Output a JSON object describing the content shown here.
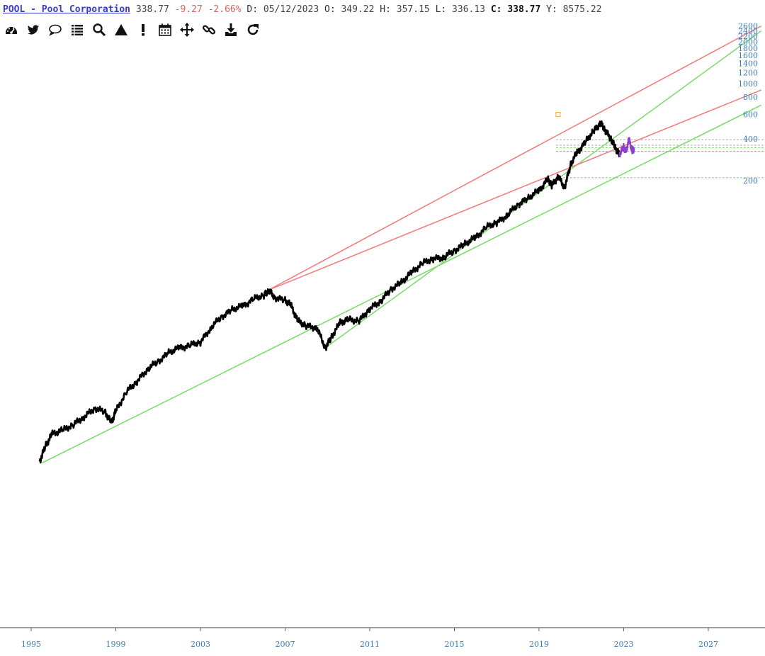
{
  "header": {
    "symbol_link": "POOL - Pool Corporation",
    "last": "338.77",
    "change": "-9.27",
    "change_pct": "-2.66%",
    "date_label": "D:",
    "date": "05/12/2023",
    "open_label": "O:",
    "open": "349.22",
    "high_label": "H:",
    "high": "357.15",
    "low_label": "L:",
    "low": "336.13",
    "close_label": "C:",
    "close": "338.77",
    "volume_label": "Y:",
    "volume": "8575.22"
  },
  "toolbar": [
    {
      "icon": "dashboard-icon"
    },
    {
      "icon": "twitter-icon"
    },
    {
      "icon": "comment-icon"
    },
    {
      "icon": "list-icon"
    },
    {
      "icon": "search-icon"
    },
    {
      "icon": "triangle-icon"
    },
    {
      "icon": "exclamation-icon"
    },
    {
      "icon": "calendar-icon"
    },
    {
      "icon": "move-icon"
    },
    {
      "icon": "link-icon"
    },
    {
      "icon": "download-icon"
    },
    {
      "icon": "refresh-icon"
    }
  ],
  "colors": {
    "price": "#000000",
    "recent": "#8a3fd0",
    "support": "#7fdc6f",
    "resistance": "#f08080",
    "axis": "#3a7ab8"
  },
  "chart_data": {
    "type": "line",
    "scale": "log",
    "y_ticks": [
      200,
      400,
      600,
      800,
      1000,
      1200,
      1400,
      1600,
      1800,
      2000,
      2200,
      2400,
      2600
    ],
    "x_ticks": [
      "1995",
      "1999",
      "2003",
      "2007",
      "2011",
      "2015",
      "2019",
      "2023",
      "2027"
    ],
    "xlim": [
      1994.5,
      2029.3
    ],
    "series": [
      {
        "points": [
          [
            1995.4,
            1.9
          ],
          [
            1995.7,
            2.5
          ],
          [
            1996.0,
            3.0
          ],
          [
            1996.5,
            3.2
          ],
          [
            1997.0,
            3.5
          ],
          [
            1997.5,
            4.0
          ],
          [
            1998.0,
            4.6
          ],
          [
            1998.5,
            4.3
          ],
          [
            1998.8,
            3.6
          ],
          [
            1999.0,
            4.4
          ],
          [
            1999.5,
            6.0
          ],
          [
            2000.0,
            7.2
          ],
          [
            2000.5,
            8.8
          ],
          [
            2001.0,
            10.0
          ],
          [
            2001.5,
            11.5
          ],
          [
            2002.0,
            12.5
          ],
          [
            2002.5,
            13.0
          ],
          [
            2003.0,
            13.8
          ],
          [
            2003.5,
            17.5
          ],
          [
            2004.0,
            21.0
          ],
          [
            2004.5,
            23.5
          ],
          [
            2005.0,
            25.0
          ],
          [
            2005.5,
            28.0
          ],
          [
            2006.0,
            30.0
          ],
          [
            2006.2,
            32.5
          ],
          [
            2006.5,
            29.0
          ],
          [
            2007.0,
            27.5
          ],
          [
            2007.3,
            25.0
          ],
          [
            2007.6,
            19.5
          ],
          [
            2008.0,
            18.0
          ],
          [
            2008.5,
            17.5
          ],
          [
            2008.9,
            12.5
          ],
          [
            2009.2,
            15.0
          ],
          [
            2009.6,
            19.0
          ],
          [
            2010.0,
            20.0
          ],
          [
            2010.5,
            19.5
          ],
          [
            2011.0,
            24.0
          ],
          [
            2011.5,
            27.0
          ],
          [
            2012.0,
            33.0
          ],
          [
            2012.5,
            37.0
          ],
          [
            2013.0,
            44.0
          ],
          [
            2013.5,
            51.0
          ],
          [
            2014.0,
            55.0
          ],
          [
            2014.5,
            56.0
          ],
          [
            2015.0,
            63.0
          ],
          [
            2015.5,
            70.0
          ],
          [
            2016.0,
            78.0
          ],
          [
            2016.5,
            92.0
          ],
          [
            2017.0,
            100.0
          ],
          [
            2017.5,
            113.0
          ],
          [
            2018.0,
            135.0
          ],
          [
            2018.5,
            150.0
          ],
          [
            2019.0,
            170.0
          ],
          [
            2019.4,
            205.0
          ],
          [
            2019.6,
            185.0
          ],
          [
            2019.9,
            215.0
          ],
          [
            2020.2,
            178.0
          ],
          [
            2020.5,
            262.0
          ],
          [
            2020.8,
            320.0
          ],
          [
            2021.2,
            380.0
          ],
          [
            2021.6,
            460.0
          ],
          [
            2021.9,
            520.0
          ],
          [
            2022.1,
            470.0
          ],
          [
            2022.4,
            400.0
          ],
          [
            2022.6,
            345.0
          ],
          [
            2022.8,
            310.0
          ]
        ]
      },
      {
        "points": [
          [
            2022.8,
            310.0
          ],
          [
            2023.0,
            350.0
          ],
          [
            2023.1,
            320.0
          ],
          [
            2023.25,
            395.0
          ],
          [
            2023.4,
            330.0
          ],
          [
            2023.5,
            338.77
          ]
        ]
      }
    ],
    "trendlines": [
      {
        "kind": "support",
        "from": [
          1995.5,
          1.85
        ],
        "to": [
          2029.5,
          700.0
        ]
      },
      {
        "kind": "support",
        "from": [
          2008.9,
          12.5
        ],
        "to": [
          2029.5,
          2400.0
        ]
      },
      {
        "kind": "resistance",
        "from": [
          2006.2,
          32.5
        ],
        "to": [
          2029.5,
          2600.0
        ]
      },
      {
        "kind": "resistance",
        "from": [
          2006.2,
          32.5
        ],
        "to": [
          2029.5,
          900.0
        ]
      }
    ],
    "horizontal_levels": [
      {
        "value": 395.0,
        "color": "#aaaaaa"
      },
      {
        "value": 360.0,
        "color": "#aaaaaa"
      },
      {
        "value": 345.0,
        "color": "#7fdc6f"
      },
      {
        "value": 325.0,
        "color": "#f08080"
      },
      {
        "value": 210.0,
        "color": "#aaaaaa"
      }
    ],
    "marker": {
      "x": 2019.9,
      "y": 600.0,
      "color": "#f0b040"
    }
  }
}
